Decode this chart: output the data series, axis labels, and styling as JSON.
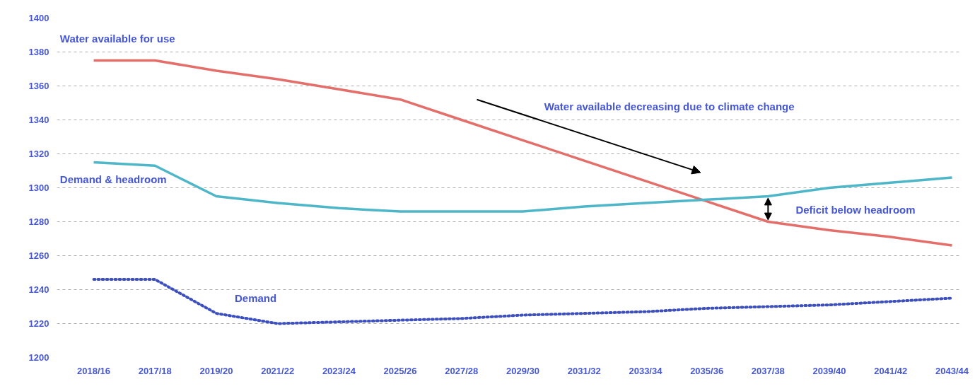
{
  "chart_data": {
    "type": "line",
    "categories": [
      "2018/16",
      "2017/18",
      "2019/20",
      "2021/22",
      "2023/24",
      "2025/26",
      "2027/28",
      "2029/30",
      "2031/32",
      "2033/34",
      "2035/36",
      "2037/38",
      "2039/40",
      "2041/42",
      "2043/44"
    ],
    "series": [
      {
        "name": "Water available for use",
        "color": "#e46f6a",
        "line_style": "solid",
        "values": [
          1375,
          1375,
          1369,
          1364,
          1358,
          1352,
          1340,
          1328,
          1316,
          1304,
          1292,
          1280,
          1275,
          1271,
          1266
        ]
      },
      {
        "name": "Demand & headroom",
        "color": "#4db6c8",
        "line_style": "solid",
        "values": [
          1315,
          1313,
          1295,
          1291,
          1288,
          1286,
          1286,
          1286,
          1289,
          1291,
          1293,
          1295,
          1300,
          1303,
          1306
        ]
      },
      {
        "name": "Demand",
        "color": "#3c4fc0",
        "line_style": "dotted",
        "values": [
          1246,
          1246,
          1226,
          1220,
          1221,
          1222,
          1223,
          1225,
          1226,
          1227,
          1229,
          1230,
          1231,
          1233,
          1235
        ]
      }
    ],
    "ylim": [
      1200,
      1400
    ],
    "yticks": [
      1200,
      1220,
      1240,
      1260,
      1280,
      1300,
      1320,
      1340,
      1360,
      1380,
      1400
    ],
    "grid": "y",
    "marker": "none",
    "annotations": [
      "Water available decreasing due to climate change",
      "Deficit below headroom"
    ]
  }
}
